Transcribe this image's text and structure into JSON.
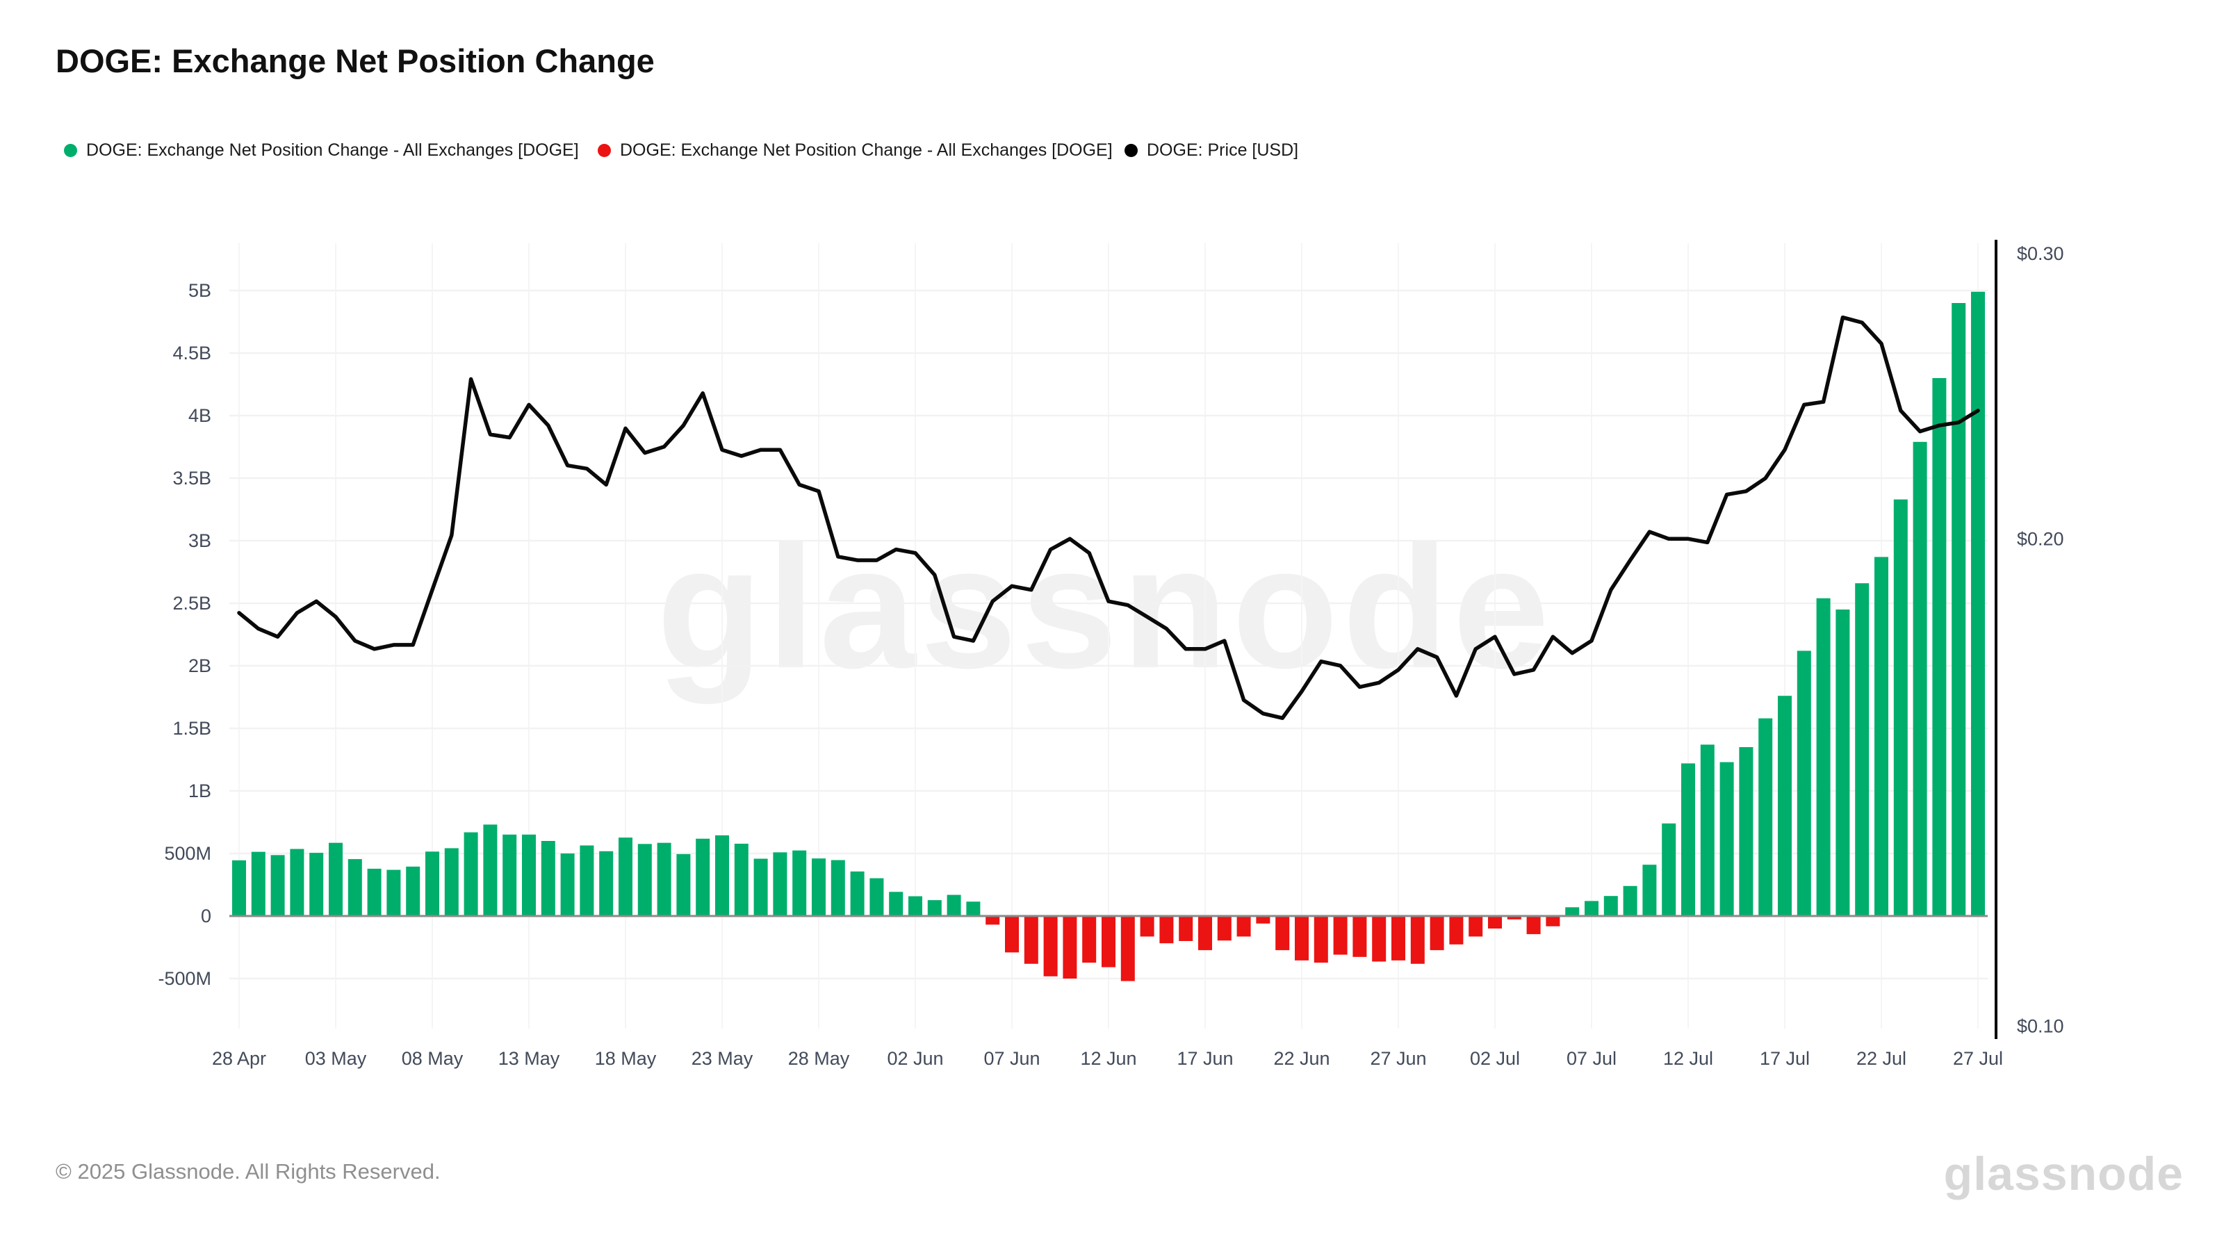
{
  "header": {
    "title": "DOGE: Exchange Net Position Change"
  },
  "legend": {
    "items": [
      {
        "label": "DOGE: Exchange Net Position Change - All Exchanges [DOGE]",
        "color": "#00ae6c"
      },
      {
        "label": "DOGE: Exchange Net Position Change - All Exchanges [DOGE]",
        "color": "#ec1313"
      },
      {
        "label": "DOGE: Price [USD]",
        "color": "#000000"
      }
    ]
  },
  "watermark": "glassnode",
  "footer": {
    "copyright": "© 2025 Glassnode. All Rights Reserved.",
    "logo_text": "glassnode"
  },
  "colors": {
    "bar_positive": "#00ae6c",
    "bar_negative": "#ec1313",
    "price_line": "#0a0a0a",
    "grid": "#f2f2f2",
    "grid_vertical": "#f5f5f5",
    "zero_line": "#8a8a8a",
    "axis_label": "#424a5a",
    "right_axis_line": "#000000",
    "watermark": "#f1f1f1"
  },
  "chart_data": {
    "type": "bar+line combo, daily from 28 Apr to 27 Jul (91 days)",
    "title": "DOGE: Exchange Net Position Change",
    "bar_series_name": "DOGE: Exchange Net Position Change - All Exchanges [DOGE]",
    "line_series_name": "DOGE: Price [USD]",
    "left_axis": {
      "unit": "DOGE",
      "ticks": [
        {
          "label": "5B",
          "millions": 5000
        },
        {
          "label": "4.5B",
          "millions": 4500
        },
        {
          "label": "4B",
          "millions": 4000
        },
        {
          "label": "3.5B",
          "millions": 3500
        },
        {
          "label": "3B",
          "millions": 3000
        },
        {
          "label": "2.5B",
          "millions": 2500
        },
        {
          "label": "2B",
          "millions": 2000
        },
        {
          "label": "1.5B",
          "millions": 1500
        },
        {
          "label": "1B",
          "millions": 1000
        },
        {
          "label": "500M",
          "millions": 500
        },
        {
          "label": "0",
          "millions": 0
        },
        {
          "label": "-500M",
          "millions": -500
        }
      ]
    },
    "right_axis": {
      "unit": "USD",
      "scale": "log",
      "ticks": [
        {
          "label": "$0.30",
          "usd": 0.3
        },
        {
          "label": "$0.20",
          "usd": 0.2
        },
        {
          "label": "$0.10",
          "usd": 0.1
        }
      ]
    },
    "x_ticks": [
      {
        "label": "28 Apr",
        "day": 0
      },
      {
        "label": "03 May",
        "day": 5
      },
      {
        "label": "08 May",
        "day": 10
      },
      {
        "label": "13 May",
        "day": 15
      },
      {
        "label": "18 May",
        "day": 20
      },
      {
        "label": "23 May",
        "day": 25
      },
      {
        "label": "28 May",
        "day": 30
      },
      {
        "label": "02 Jun",
        "day": 35
      },
      {
        "label": "07 Jun",
        "day": 40
      },
      {
        "label": "12 Jun",
        "day": 45
      },
      {
        "label": "17 Jun",
        "day": 50
      },
      {
        "label": "22 Jun",
        "day": 55
      },
      {
        "label": "27 Jun",
        "day": 60
      },
      {
        "label": "02 Jul",
        "day": 65
      },
      {
        "label": "07 Jul",
        "day": 70
      },
      {
        "label": "12 Jul",
        "day": 75
      },
      {
        "label": "17 Jul",
        "day": 80
      },
      {
        "label": "22 Jul",
        "day": 85
      },
      {
        "label": "27 Jul",
        "day": 90
      }
    ],
    "bars_millions": [
      445,
      513,
      487,
      536,
      505,
      585,
      455,
      378,
      369,
      395,
      515,
      542,
      669,
      731,
      651,
      651,
      600,
      500,
      564,
      518,
      627,
      576,
      585,
      495,
      618,
      645,
      578,
      458,
      509,
      524,
      460,
      447,
      356,
      302,
      193,
      158,
      127,
      169,
      115,
      -69,
      -291,
      -382,
      -482,
      -500,
      -373,
      -409,
      -520,
      -164,
      -218,
      -200,
      -273,
      -196,
      -164,
      -60,
      -273,
      -355,
      -373,
      -309,
      -327,
      -364,
      -355,
      -382,
      -273,
      -227,
      -164,
      -100,
      -27,
      -145,
      -82,
      70,
      120,
      160,
      240,
      410,
      740,
      1220,
      1370,
      1230,
      1350,
      1580,
      1760,
      2120,
      2540,
      2450,
      2660,
      2870,
      3330,
      3790,
      4300,
      4900,
      4990
    ],
    "price_usd": [
      0.18,
      0.176,
      0.174,
      0.18,
      0.183,
      0.179,
      0.173,
      0.171,
      0.172,
      0.172,
      0.186,
      0.201,
      0.251,
      0.232,
      0.231,
      0.242,
      0.235,
      0.222,
      0.221,
      0.216,
      0.234,
      0.226,
      0.228,
      0.235,
      0.246,
      0.227,
      0.225,
      0.227,
      0.227,
      0.216,
      0.214,
      0.195,
      0.194,
      0.194,
      0.197,
      0.196,
      0.19,
      0.174,
      0.173,
      0.183,
      0.187,
      0.186,
      0.197,
      0.2,
      0.196,
      0.183,
      0.182,
      0.179,
      0.176,
      0.171,
      0.171,
      0.173,
      0.159,
      0.156,
      0.155,
      0.161,
      0.168,
      0.167,
      0.162,
      0.163,
      0.166,
      0.171,
      0.169,
      0.16,
      0.171,
      0.174,
      0.165,
      0.166,
      0.174,
      0.17,
      0.173,
      0.186,
      0.194,
      0.202,
      0.2,
      0.2,
      0.199,
      0.213,
      0.214,
      0.218,
      0.227,
      0.242,
      0.243,
      0.274,
      0.272,
      0.264,
      0.24,
      0.233,
      0.235,
      0.236,
      0.24
    ]
  }
}
